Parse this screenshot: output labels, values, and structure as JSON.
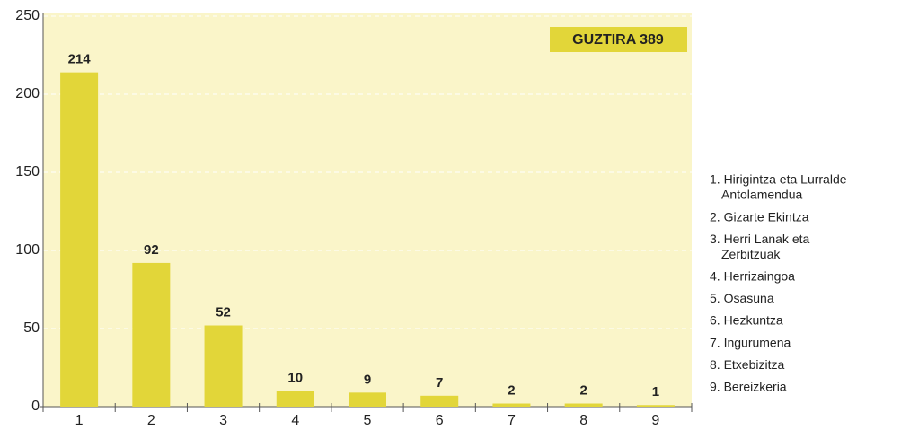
{
  "chart_data": {
    "type": "bar",
    "categories": [
      "1",
      "2",
      "3",
      "4",
      "5",
      "6",
      "7",
      "8",
      "9"
    ],
    "values": [
      214,
      92,
      52,
      10,
      9,
      7,
      2,
      2,
      1
    ],
    "color": "#e2d639",
    "ylim": [
      0,
      250
    ],
    "yticks": [
      0,
      50,
      100,
      150,
      200,
      250
    ],
    "grid": true,
    "annotation": "GUZTIRA 389",
    "legend": [
      [
        "1. Hirigintza eta Lurralde",
        "Antolamendua"
      ],
      [
        "2. Gizarte Ekintza"
      ],
      [
        "3. Herri Lanak eta",
        "Zerbitzuak"
      ],
      [
        "4. Herrizaingoa"
      ],
      [
        "5. Osasuna"
      ],
      [
        "6. Hezkuntza"
      ],
      [
        "7. Ingurumena"
      ],
      [
        "8. Etxebizitza"
      ],
      [
        "9. Bereizkeria"
      ]
    ]
  }
}
